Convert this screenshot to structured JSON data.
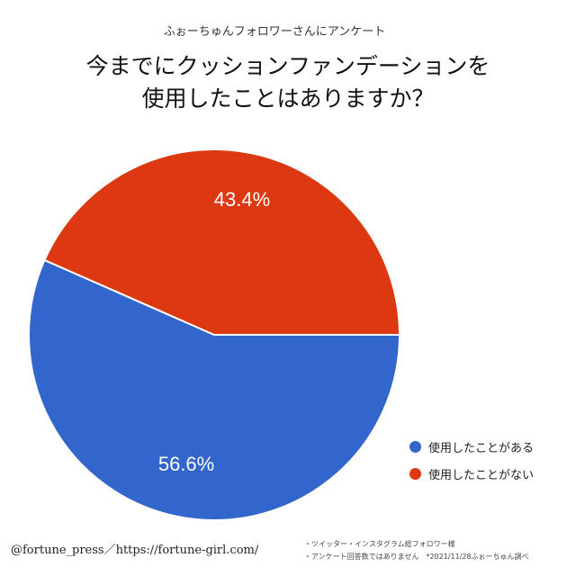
{
  "header": {
    "subtitle": "ふぉーちゅんフォロワーさんにアンケート",
    "title_line1": "今までにクッションファンデーションを",
    "title_line2": "使用したことはありますか？"
  },
  "chart_data": {
    "type": "pie",
    "title": "今までにクッションファンデーションを使用したことはありますか？",
    "categories": [
      "使用したことがある",
      "使用したことがない"
    ],
    "values": [
      56.6,
      43.4
    ],
    "labels": [
      "56.6%",
      "43.4%"
    ],
    "colors": [
      "#3366cc",
      "#dc3912"
    ],
    "legend_position": "bottom-right"
  },
  "footer": {
    "credit": "@fortune_press／https://fortune-girl.com/",
    "note1": "・ツイッター・インスタグラム総フォロワー様",
    "note2": "・アンケート回答数ではありません　*2021/11/28ふぉーちゅん調べ"
  }
}
